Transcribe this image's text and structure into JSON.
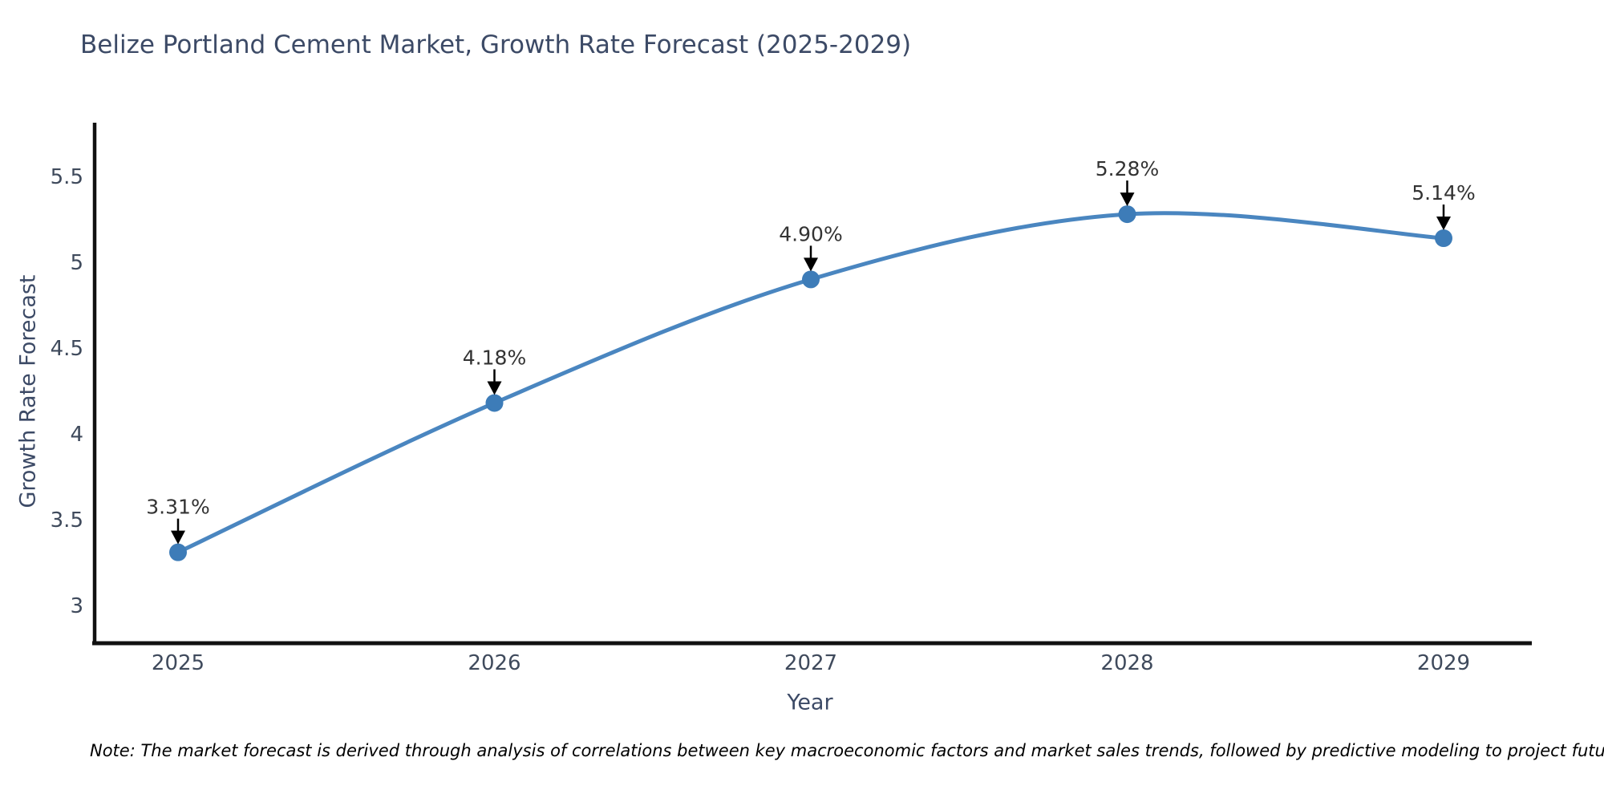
{
  "note": "Note: The market forecast is derived through analysis of correlations between key macroeconomic factors and market sales trends, followed by predictive modeling to project future sales",
  "chart_data": {
    "type": "line",
    "title": "Belize Portland Cement Market, Growth Rate Forecast (2025-2029)",
    "xlabel": "Year",
    "ylabel": "Growth Rate Forecast",
    "x": [
      2025,
      2026,
      2027,
      2028,
      2029
    ],
    "values": [
      3.31,
      4.18,
      4.9,
      5.28,
      5.14
    ],
    "point_labels": [
      "3.31%",
      "4.18%",
      "4.90%",
      "5.28%",
      "5.14%"
    ],
    "y_ticks": [
      3,
      3.5,
      4,
      4.5,
      5,
      5.5
    ],
    "ylim": [
      2.73,
      5.78
    ],
    "grid": false,
    "legend": "none",
    "colors": {
      "line": "#4a86c0",
      "marker": "#3d7cb8",
      "arrow": "#000000",
      "annotation_text": "#333333",
      "axis": "#111111",
      "tick_label": "#3f4a5c",
      "title": "#3c4a66",
      "note": "#000000"
    }
  }
}
